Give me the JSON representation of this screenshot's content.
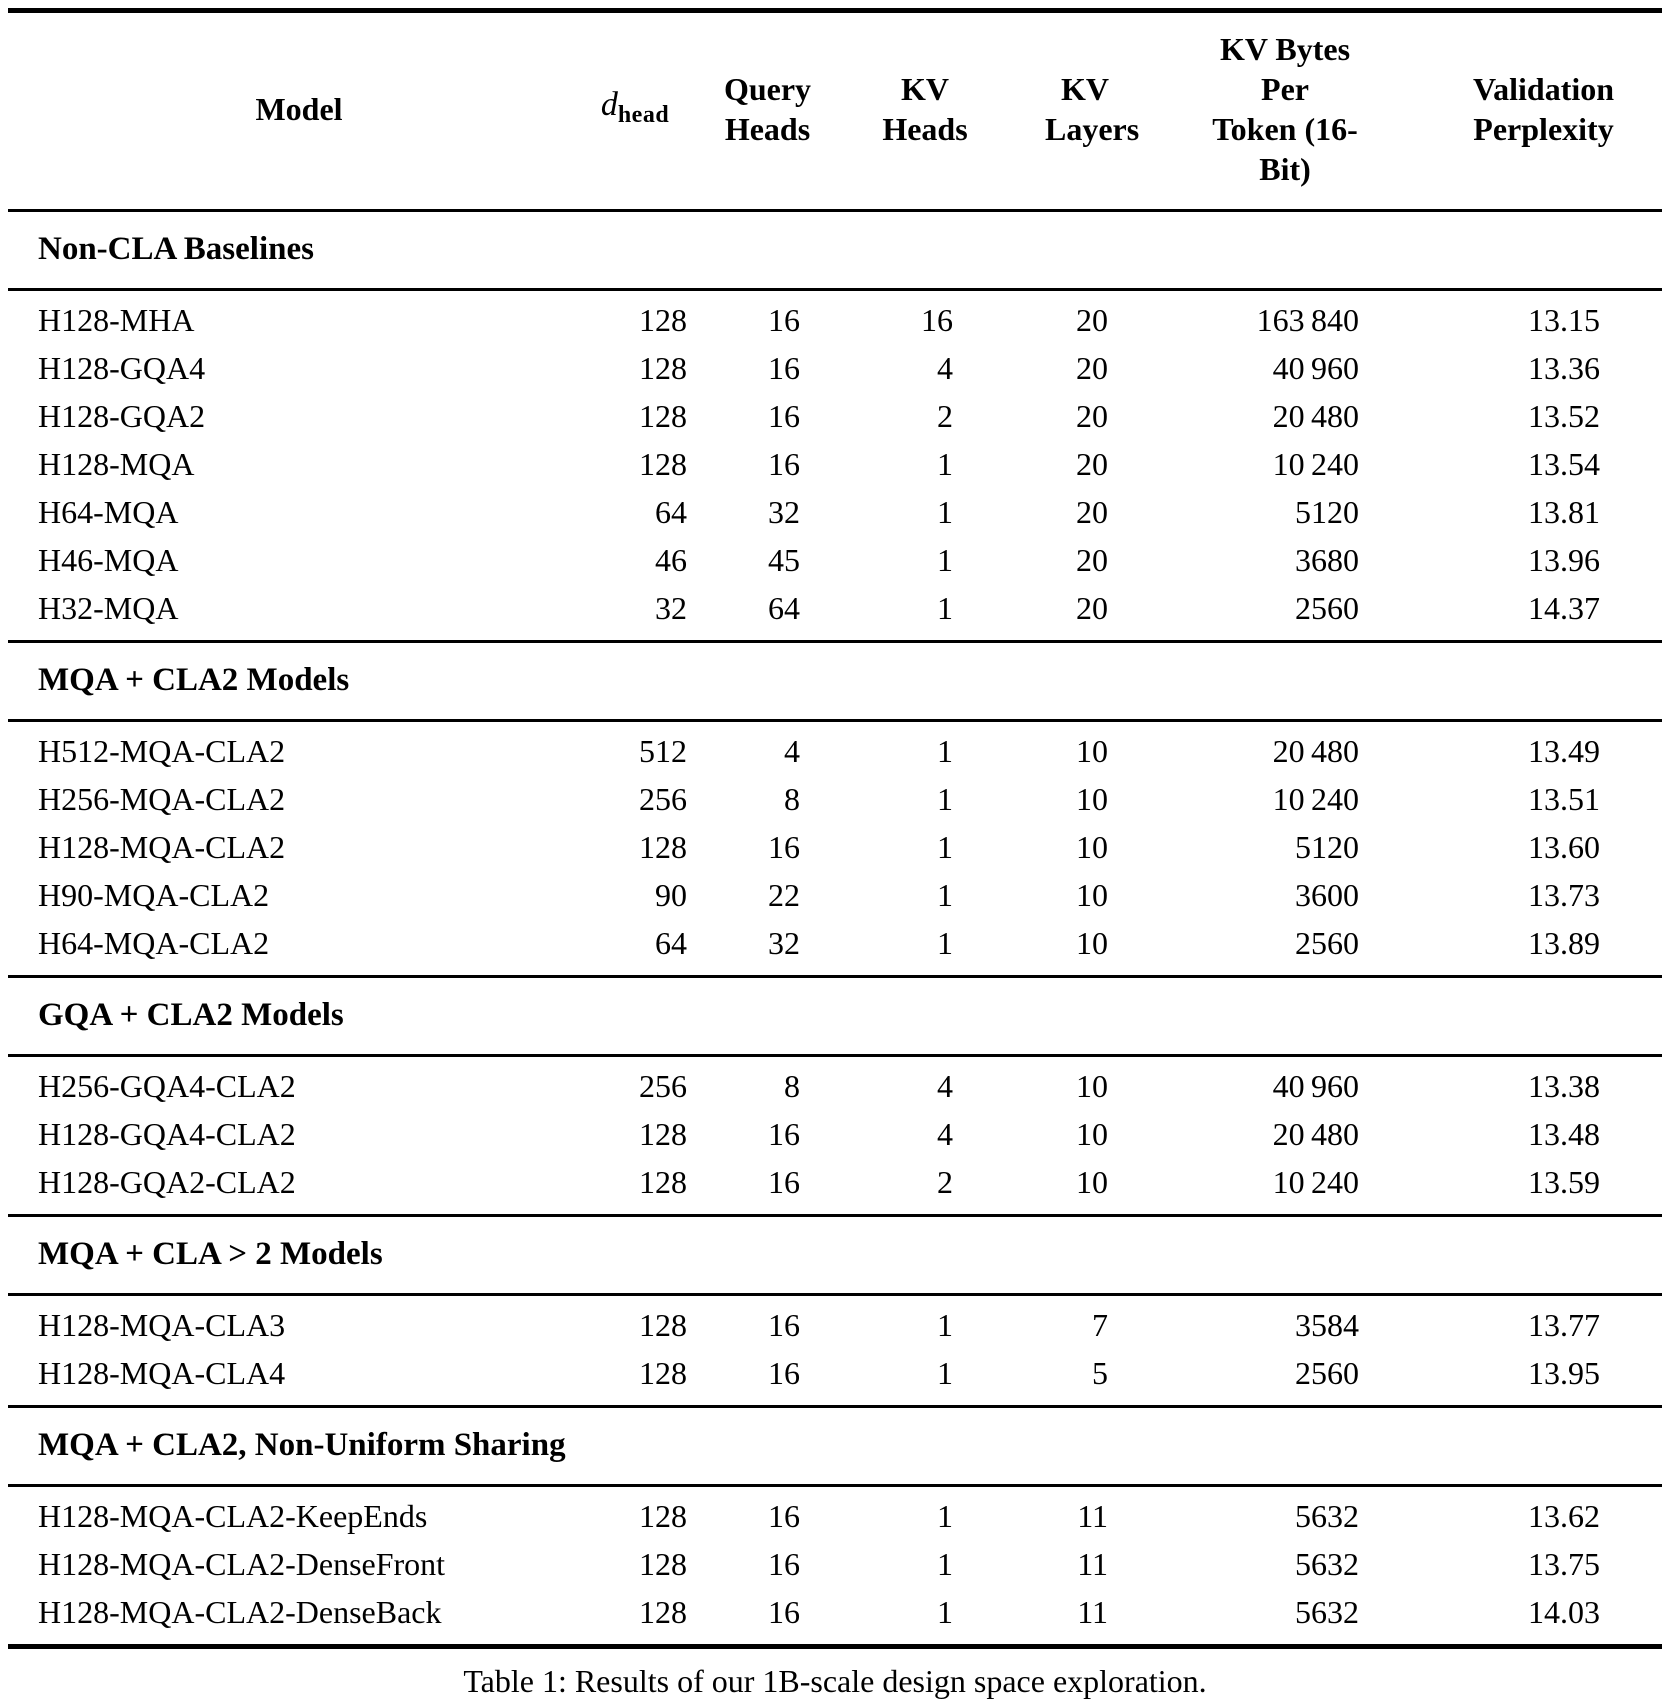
{
  "page": {
    "background_color": "#ffffff",
    "text_color": "#000000"
  },
  "table": {
    "columns": [
      {
        "id": "model",
        "header_lines": [
          "Model"
        ]
      },
      {
        "id": "dhead",
        "math": {
          "base": "d",
          "sub": "head"
        }
      },
      {
        "id": "query-heads",
        "header_lines": [
          "Query",
          "Heads"
        ]
      },
      {
        "id": "kv-heads",
        "header_lines": [
          "KV",
          "Heads"
        ]
      },
      {
        "id": "kv-layers",
        "header_lines": [
          "KV",
          "Layers"
        ]
      },
      {
        "id": "kv-bytes-per-token",
        "header_lines": [
          "KV Bytes Per",
          "Token (16-Bit)"
        ]
      },
      {
        "id": "validation-perplexity",
        "header_lines": [
          "Validation",
          "Perplexity"
        ]
      }
    ],
    "sections": [
      {
        "title": "Non-CLA Baselines",
        "rows": [
          [
            "H128-MHA",
            "128",
            "16",
            "16",
            "20",
            "163 840",
            "13.15"
          ],
          [
            "H128-GQA4",
            "128",
            "16",
            "4",
            "20",
            "40 960",
            "13.36"
          ],
          [
            "H128-GQA2",
            "128",
            "16",
            "2",
            "20",
            "20 480",
            "13.52"
          ],
          [
            "H128-MQA",
            "128",
            "16",
            "1",
            "20",
            "10 240",
            "13.54"
          ],
          [
            "H64-MQA",
            "64",
            "32",
            "1",
            "20",
            "5120",
            "13.81"
          ],
          [
            "H46-MQA",
            "46",
            "45",
            "1",
            "20",
            "3680",
            "13.96"
          ],
          [
            "H32-MQA",
            "32",
            "64",
            "1",
            "20",
            "2560",
            "14.37"
          ]
        ]
      },
      {
        "title": "MQA + CLA2 Models",
        "rows": [
          [
            "H512-MQA-CLA2",
            "512",
            "4",
            "1",
            "10",
            "20 480",
            "13.49"
          ],
          [
            "H256-MQA-CLA2",
            "256",
            "8",
            "1",
            "10",
            "10 240",
            "13.51"
          ],
          [
            "H128-MQA-CLA2",
            "128",
            "16",
            "1",
            "10",
            "5120",
            "13.60"
          ],
          [
            "H90-MQA-CLA2",
            "90",
            "22",
            "1",
            "10",
            "3600",
            "13.73"
          ],
          [
            "H64-MQA-CLA2",
            "64",
            "32",
            "1",
            "10",
            "2560",
            "13.89"
          ]
        ]
      },
      {
        "title": "GQA + CLA2 Models",
        "rows": [
          [
            "H256-GQA4-CLA2",
            "256",
            "8",
            "4",
            "10",
            "40 960",
            "13.38"
          ],
          [
            "H128-GQA4-CLA2",
            "128",
            "16",
            "4",
            "10",
            "20 480",
            "13.48"
          ],
          [
            "H128-GQA2-CLA2",
            "128",
            "16",
            "2",
            "10",
            "10 240",
            "13.59"
          ]
        ]
      },
      {
        "title": "MQA + CLA > 2 Models",
        "rows": [
          [
            "H128-MQA-CLA3",
            "128",
            "16",
            "1",
            "7",
            "3584",
            "13.77"
          ],
          [
            "H128-MQA-CLA4",
            "128",
            "16",
            "1",
            "5",
            "2560",
            "13.95"
          ]
        ]
      },
      {
        "title": "MQA + CLA2, Non-Uniform Sharing",
        "rows": [
          [
            "H128-MQA-CLA2-KeepEnds",
            "128",
            "16",
            "1",
            "11",
            "5632",
            "13.62"
          ],
          [
            "H128-MQA-CLA2-DenseFront",
            "128",
            "16",
            "1",
            "11",
            "5632",
            "13.75"
          ],
          [
            "H128-MQA-CLA2-DenseBack",
            "128",
            "16",
            "1",
            "11",
            "5632",
            "14.03"
          ]
        ]
      }
    ],
    "caption": "Table 1: Results of our 1B-scale design space exploration."
  }
}
